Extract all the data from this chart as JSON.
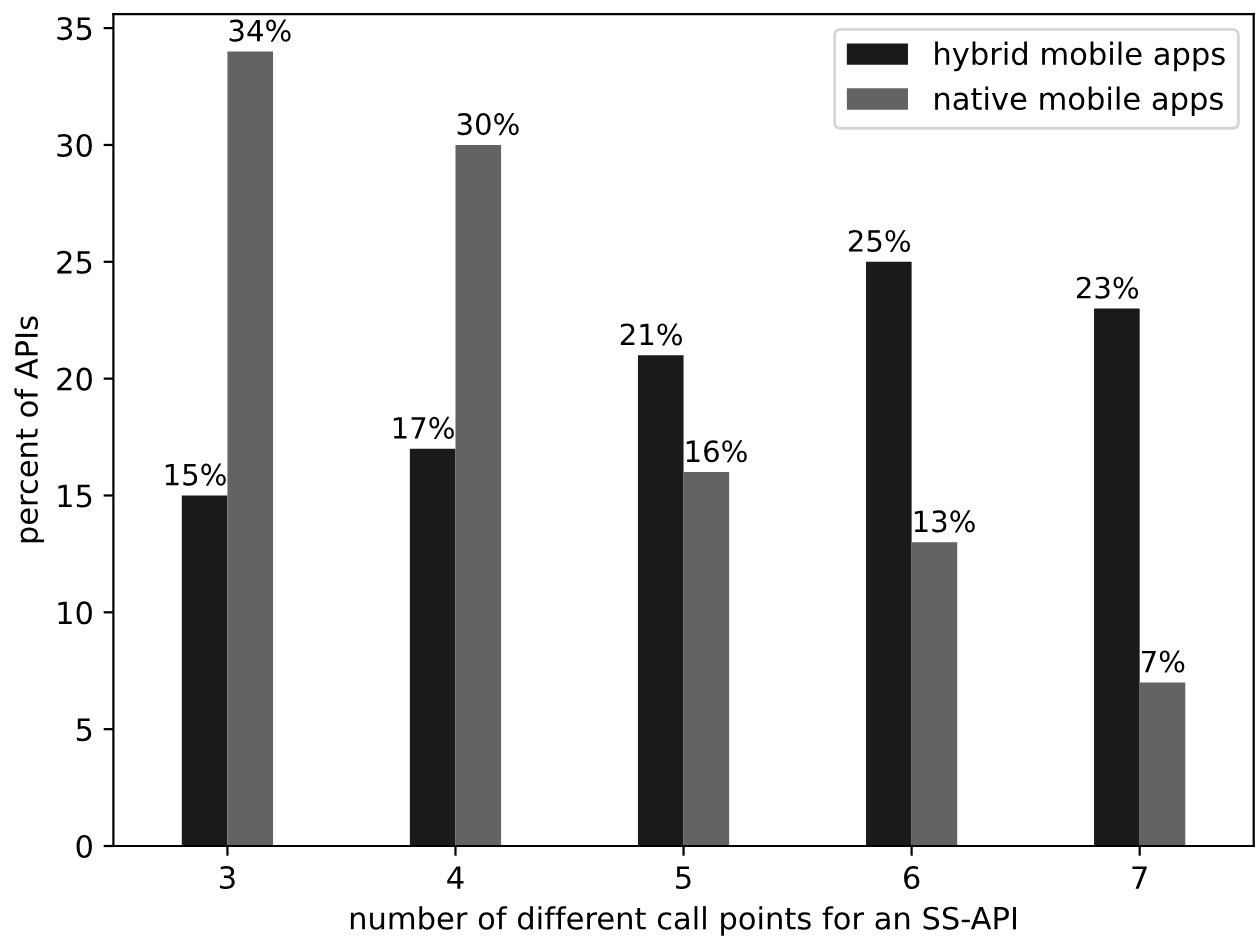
{
  "chart_data": {
    "type": "bar",
    "xlabel": "number of different call points for an SS-API",
    "ylabel": "percent of APIs",
    "categories": [
      "3",
      "4",
      "5",
      "6",
      "7"
    ],
    "series": [
      {
        "name": "hybrid mobile apps",
        "color": "#1a1a1a",
        "values": [
          15,
          17,
          21,
          25,
          23
        ],
        "value_labels": [
          "15%",
          "17%",
          "21%",
          "25%",
          "23%"
        ]
      },
      {
        "name": "native mobile apps",
        "color": "#636363",
        "values": [
          34,
          30,
          16,
          13,
          7
        ],
        "value_labels": [
          "34%",
          "30%",
          "16%",
          "13%",
          "7%"
        ]
      }
    ],
    "ylim": [
      0,
      35.6
    ],
    "yticks": [
      0,
      5,
      10,
      15,
      20,
      25,
      30,
      35
    ],
    "grid": false,
    "legend": "top right"
  }
}
